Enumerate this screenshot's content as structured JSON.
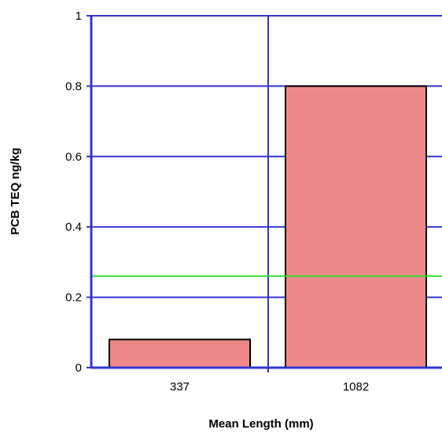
{
  "chart_data": {
    "type": "bar",
    "title": "",
    "xlabel": "Mean Length (mm)",
    "ylabel": "PCB TEQ ng/kg",
    "categories": [
      "337",
      "1082"
    ],
    "values": [
      0.08,
      0.8
    ],
    "ylim": [
      0,
      1
    ],
    "yticks": [
      0,
      0.2,
      0.4,
      0.6,
      0.8,
      1
    ],
    "ytick_labels": [
      "0",
      "0.2",
      "0.4",
      "0.6",
      "0.8",
      "1"
    ],
    "reference_line": {
      "y": 0.26,
      "color": "#33dd33"
    },
    "grid": true,
    "colors": {
      "bar": "#ee8888",
      "bar_edge": "#000000",
      "grid": "#3333cc"
    }
  }
}
